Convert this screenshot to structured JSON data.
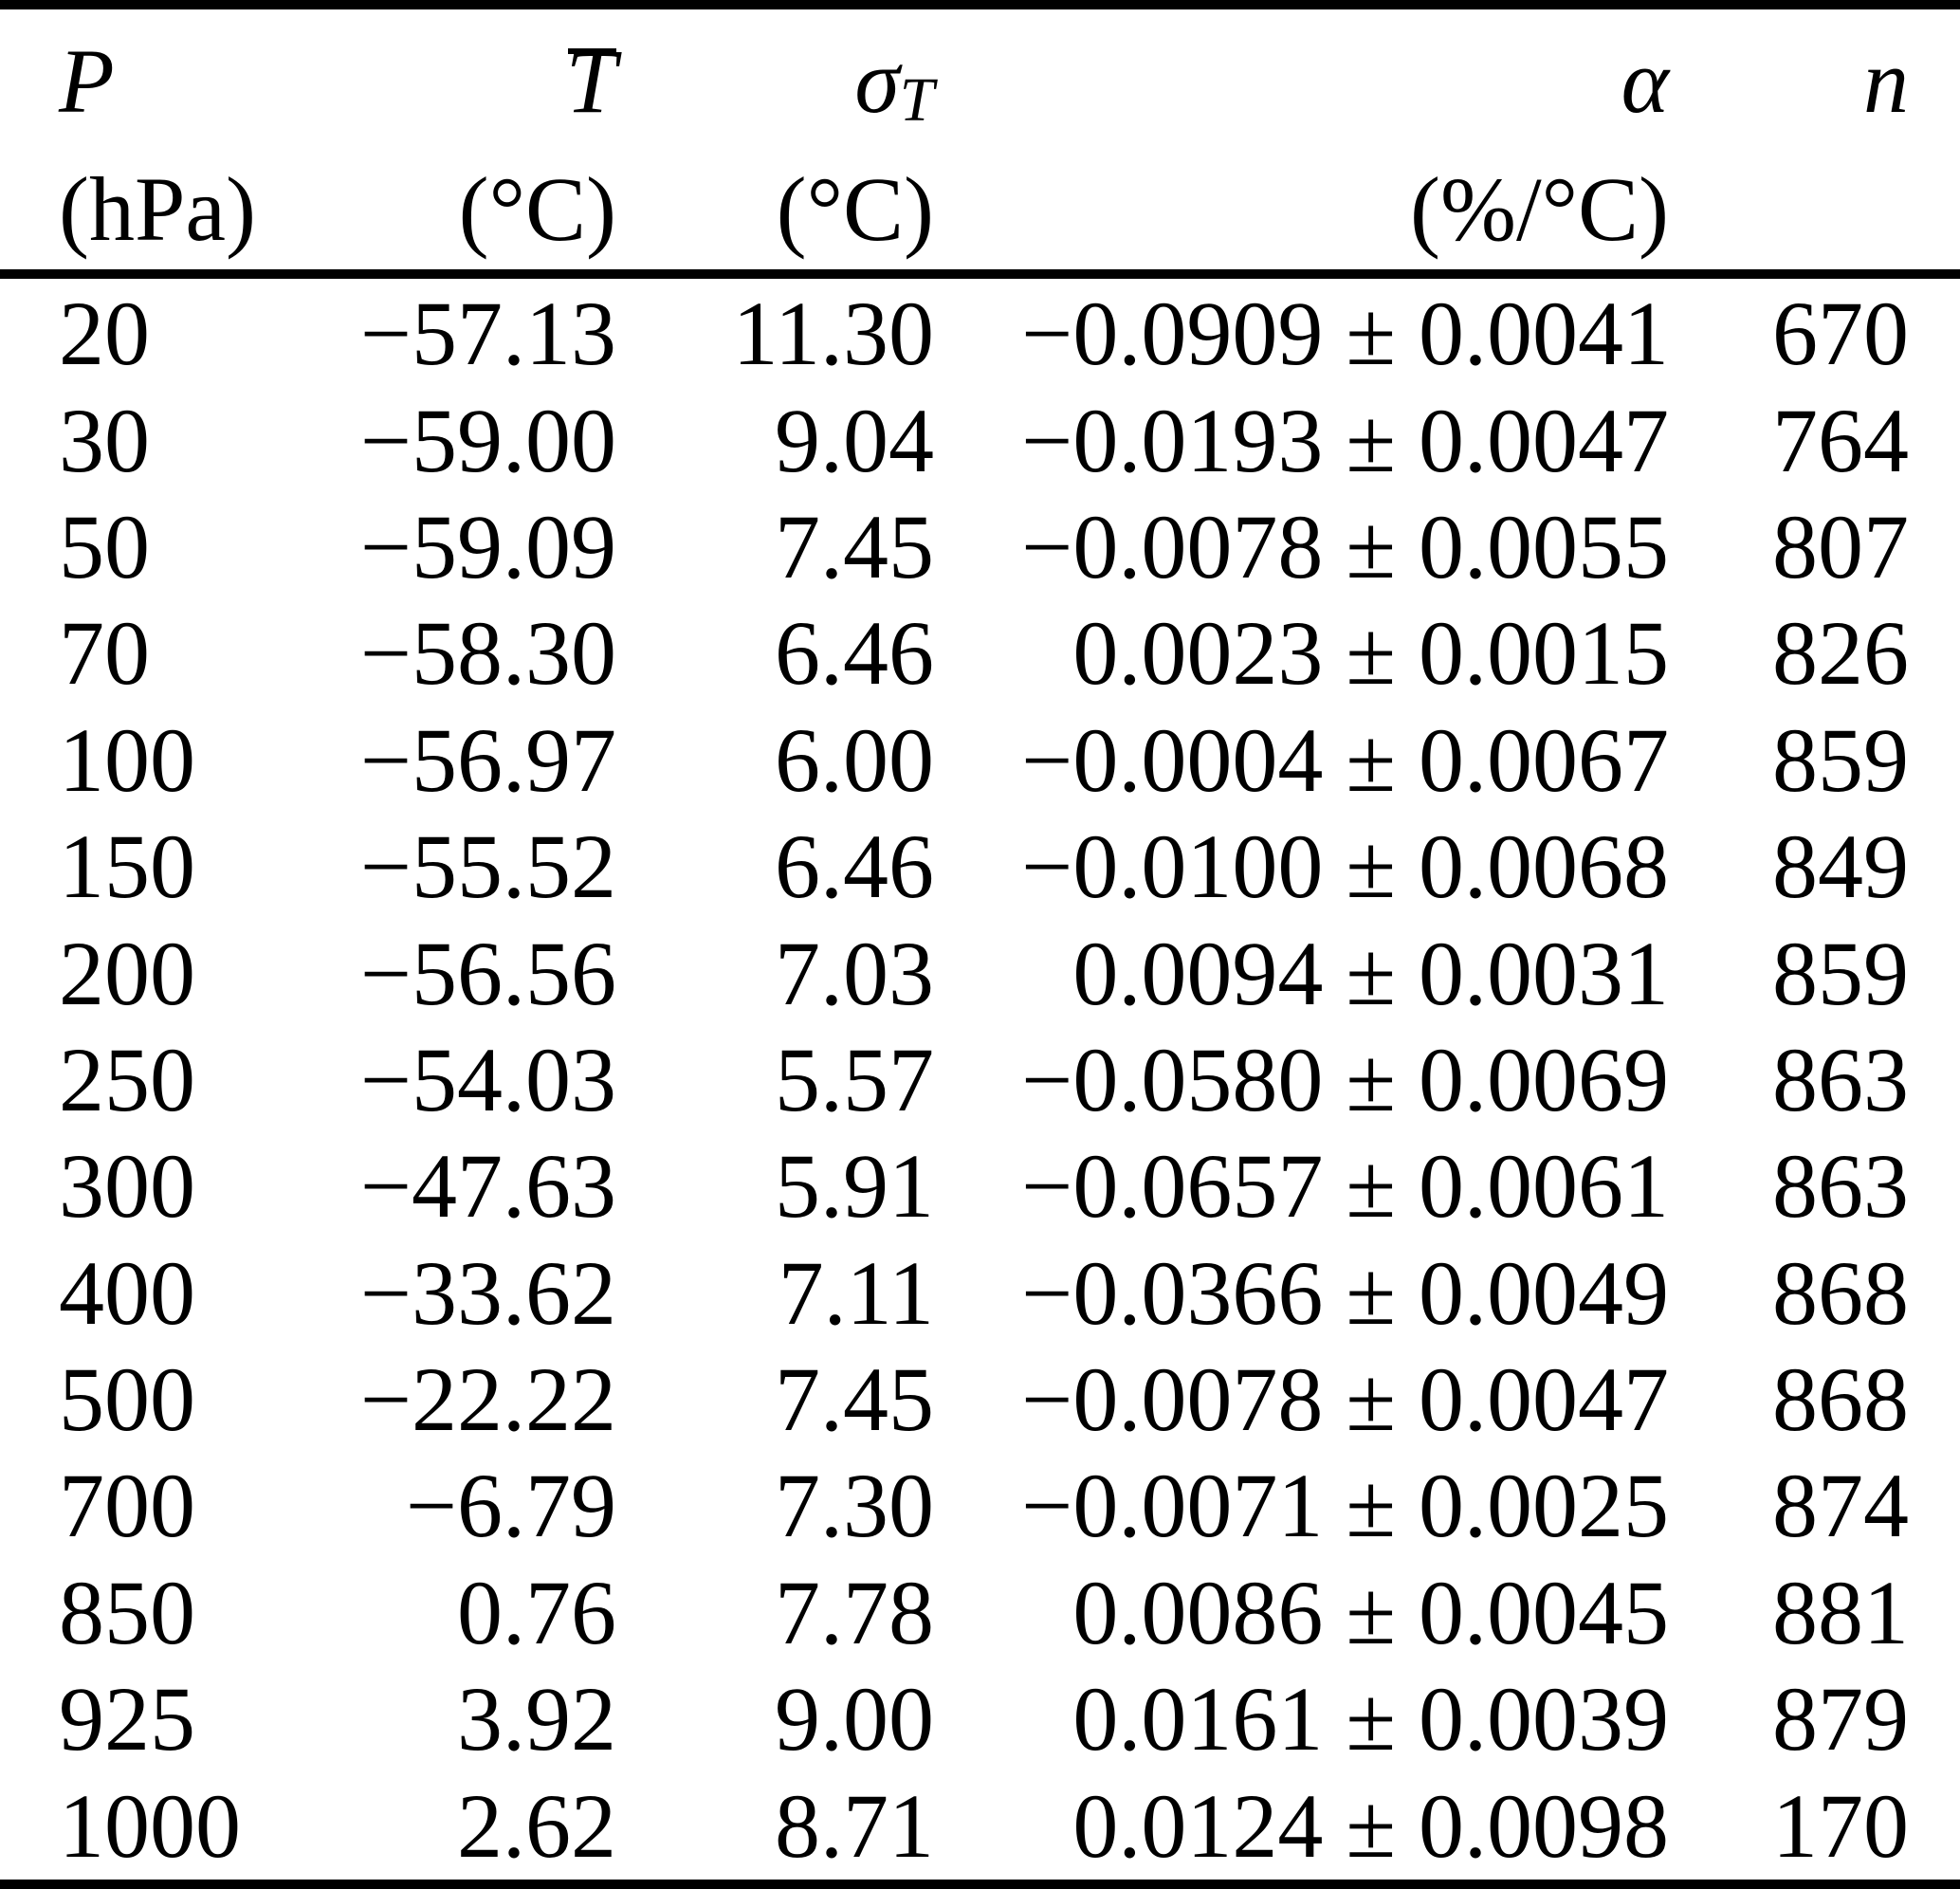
{
  "page": {
    "background": "#ffffff",
    "rule_color": "#000000",
    "text_color": "#000000"
  },
  "table": {
    "headers": {
      "p": {
        "symbol": "P",
        "unit": "(hPa)"
      },
      "t_mean": {
        "symbol": "T",
        "overline": true,
        "unit": "(°C)"
      },
      "sigma_t": {
        "symbol": "σ",
        "subscript": "T",
        "unit": "(°C)"
      },
      "alpha": {
        "symbol": "α",
        "unit": "(%/°C)"
      },
      "n": {
        "symbol": "n",
        "unit": ""
      }
    },
    "rows": [
      {
        "p": "20",
        "t_mean": "−57.13",
        "sigma_t": "11.30",
        "alpha": "−0.0909 ± 0.0041",
        "n": "670"
      },
      {
        "p": "30",
        "t_mean": "−59.00",
        "sigma_t": "9.04",
        "alpha": "−0.0193 ± 0.0047",
        "n": "764"
      },
      {
        "p": "50",
        "t_mean": "−59.09",
        "sigma_t": "7.45",
        "alpha": "−0.0078 ± 0.0055",
        "n": "807"
      },
      {
        "p": "70",
        "t_mean": "−58.30",
        "sigma_t": "6.46",
        "alpha": "0.0023 ± 0.0015",
        "n": "826"
      },
      {
        "p": "100",
        "t_mean": "−56.97",
        "sigma_t": "6.00",
        "alpha": "−0.0004 ± 0.0067",
        "n": "859"
      },
      {
        "p": "150",
        "t_mean": "−55.52",
        "sigma_t": "6.46",
        "alpha": "−0.0100 ± 0.0068",
        "n": "849"
      },
      {
        "p": "200",
        "t_mean": "−56.56",
        "sigma_t": "7.03",
        "alpha": "0.0094 ± 0.0031",
        "n": "859"
      },
      {
        "p": "250",
        "t_mean": "−54.03",
        "sigma_t": "5.57",
        "alpha": "−0.0580 ± 0.0069",
        "n": "863"
      },
      {
        "p": "300",
        "t_mean": "−47.63",
        "sigma_t": "5.91",
        "alpha": "−0.0657 ± 0.0061",
        "n": "863"
      },
      {
        "p": "400",
        "t_mean": "−33.62",
        "sigma_t": "7.11",
        "alpha": "−0.0366 ± 0.0049",
        "n": "868"
      },
      {
        "p": "500",
        "t_mean": "−22.22",
        "sigma_t": "7.45",
        "alpha": "−0.0078 ± 0.0047",
        "n": "868"
      },
      {
        "p": "700",
        "t_mean": "−6.79",
        "sigma_t": "7.30",
        "alpha": "−0.0071 ± 0.0025",
        "n": "874"
      },
      {
        "p": "850",
        "t_mean": "0.76",
        "sigma_t": "7.78",
        "alpha": "0.0086 ± 0.0045",
        "n": "881"
      },
      {
        "p": "925",
        "t_mean": "3.92",
        "sigma_t": "9.00",
        "alpha": "0.0161 ± 0.0039",
        "n": "879"
      },
      {
        "p": "1000",
        "t_mean": "2.62",
        "sigma_t": "8.71",
        "alpha": "0.0124 ± 0.0098",
        "n": "170"
      }
    ]
  }
}
